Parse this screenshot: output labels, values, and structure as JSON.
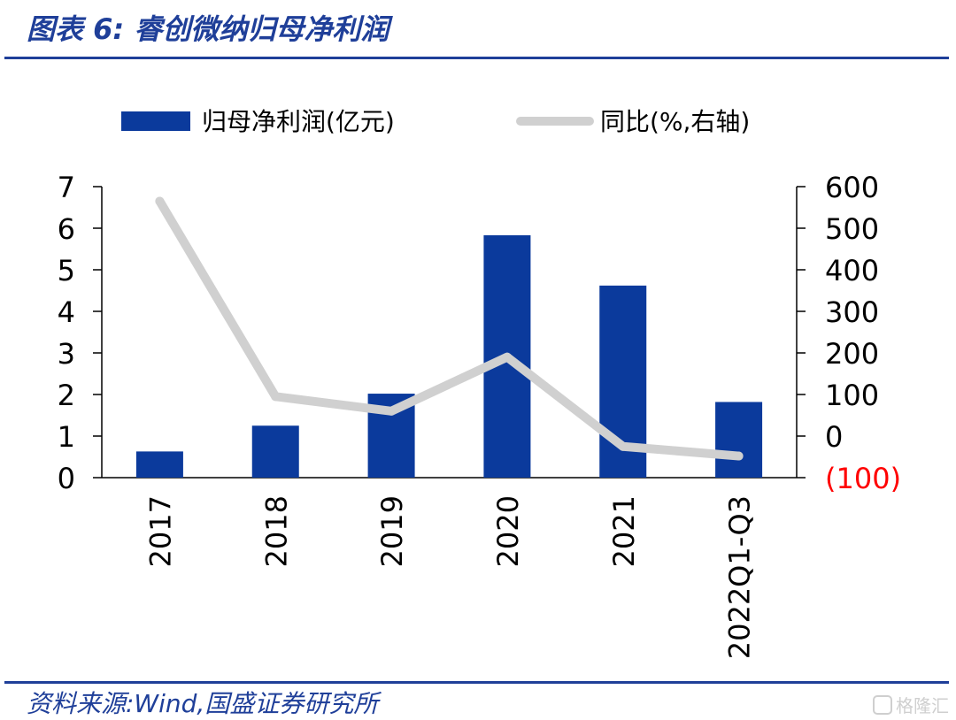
{
  "title": "图表 6:  睿创微纳归母净利润",
  "source": "资料来源:Wind,国盛证券研究所",
  "watermark": "格隆汇",
  "colors": {
    "bar": "#0b3a9c",
    "line": "#d0d0d0",
    "title": "#1f3f99",
    "negative_tick": "#ff0000"
  },
  "chart_data": {
    "type": "bar+line",
    "categories": [
      "2017",
      "2018",
      "2019",
      "2020",
      "2021",
      "2022Q1-Q3"
    ],
    "series": [
      {
        "name": "归母净利润(亿元)",
        "type": "bar",
        "axis": "left",
        "values": [
          0.63,
          1.25,
          2.02,
          5.83,
          4.62,
          1.82
        ]
      },
      {
        "name": "同比(%,右轴)",
        "type": "line",
        "axis": "right",
        "values": [
          565,
          95,
          60,
          190,
          -25,
          -48
        ]
      }
    ],
    "left_axis": {
      "min": 0,
      "max": 7,
      "ticks": [
        "0",
        "1",
        "2",
        "3",
        "4",
        "5",
        "6",
        "7"
      ]
    },
    "right_axis": {
      "min": -100,
      "max": 600,
      "ticks": [
        "(100)",
        "0",
        "100",
        "200",
        "300",
        "400",
        "500",
        "600"
      ]
    },
    "legend_position": "top",
    "grid": false
  }
}
